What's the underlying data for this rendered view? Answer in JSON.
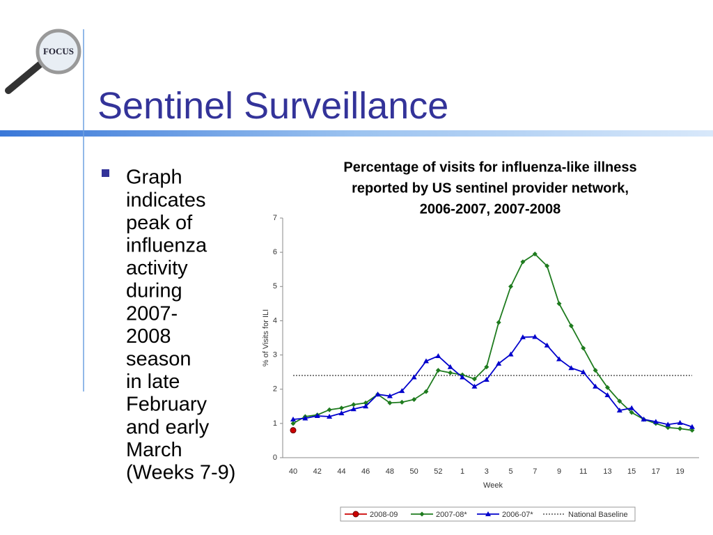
{
  "slide": {
    "title": "Sentinel Surveillance",
    "logo": "FOCUS",
    "bullet": [
      "Graph",
      "indicates",
      "peak of",
      "influenza",
      "activity",
      "during",
      "2007-",
      "2008",
      "season",
      "in late",
      "February",
      "and early",
      "March",
      "(Weeks 7-9)"
    ]
  },
  "chart_data": {
    "type": "line",
    "title": [
      "Percentage of visits for influenza-like illness",
      "reported by US sentinel provider network,",
      "2006-2007, 2007-2008"
    ],
    "x_label": "Week",
    "y_label": "% of Visits for ILI",
    "categories": [
      "40",
      null,
      "42",
      null,
      "44",
      null,
      "46",
      null,
      "48",
      null,
      "50",
      null,
      "52",
      null,
      "1",
      null,
      "3",
      null,
      "5",
      null,
      "7",
      null,
      "9",
      null,
      "11",
      null,
      "13",
      null,
      "15",
      null,
      "17",
      null,
      "19",
      null
    ],
    "series": [
      {
        "name": "2008-09",
        "color": "#cc0000",
        "marker": "circle",
        "values": [
          0.8,
          null,
          null,
          null,
          null,
          null,
          null,
          null,
          null,
          null,
          null,
          null,
          null,
          null,
          null,
          null,
          null,
          null,
          null,
          null,
          null,
          null,
          null,
          null,
          null,
          null,
          null,
          null,
          null,
          null,
          null,
          null,
          null,
          null
        ]
      },
      {
        "name": "2007-08*",
        "color": "#1e7b1e",
        "marker": "diamond",
        "values": [
          1.0,
          1.2,
          1.25,
          1.4,
          1.45,
          1.55,
          1.6,
          1.85,
          1.6,
          1.62,
          1.7,
          1.93,
          2.55,
          2.48,
          2.42,
          2.3,
          2.65,
          3.95,
          5.0,
          5.72,
          5.95,
          5.6,
          4.5,
          3.85,
          3.2,
          2.55,
          2.05,
          1.65,
          1.32,
          1.12,
          1.0,
          0.88,
          0.85,
          0.8
        ]
      },
      {
        "name": "2006-07*",
        "color": "#0000cc",
        "marker": "triangle",
        "values": [
          1.12,
          1.15,
          1.22,
          1.2,
          1.3,
          1.42,
          1.5,
          1.85,
          1.8,
          1.95,
          2.35,
          2.82,
          2.97,
          2.65,
          2.35,
          2.08,
          2.28,
          2.75,
          3.02,
          3.52,
          3.53,
          3.28,
          2.88,
          2.62,
          2.5,
          2.08,
          1.83,
          1.38,
          1.45,
          1.12,
          1.05,
          0.97,
          1.02,
          0.9
        ]
      }
    ],
    "baseline": {
      "name": "National Baseline",
      "value": 2.4,
      "color": "#555555"
    },
    "ylim": [
      0,
      7
    ],
    "yticks": [
      0,
      1,
      2,
      3,
      4,
      5,
      6,
      7
    ],
    "grid": false,
    "legend": "bottom"
  }
}
